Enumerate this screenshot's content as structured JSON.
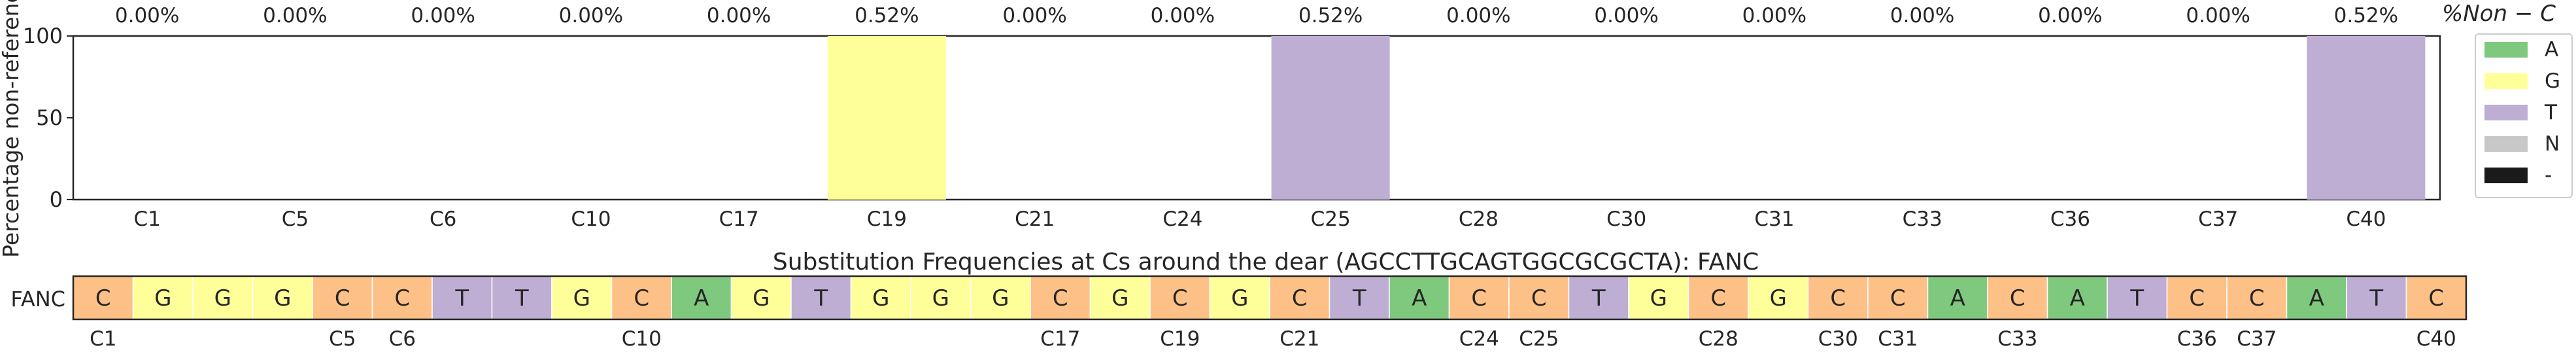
{
  "chart_data": [
    {
      "type": "bar",
      "stacked": true,
      "ylabel": "Percentage non-reference",
      "ylim": [
        0,
        100
      ],
      "yticks": [
        0,
        50,
        100
      ],
      "categories": [
        "C1",
        "C5",
        "C6",
        "C10",
        "C17",
        "C19",
        "C21",
        "C24",
        "C25",
        "C28",
        "C30",
        "C31",
        "C33",
        "C36",
        "C37",
        "C40"
      ],
      "top_labels": [
        "0.00%",
        "0.00%",
        "0.00%",
        "0.00%",
        "0.00%",
        "0.52%",
        "0.00%",
        "0.00%",
        "0.52%",
        "0.00%",
        "0.00%",
        "0.00%",
        "0.00%",
        "0.00%",
        "0.00%",
        "0.52%"
      ],
      "top_axis_label": "%Non − C",
      "series": [
        {
          "name": "A",
          "color": "#7fc97f",
          "values": [
            0,
            0,
            0,
            0,
            0,
            0,
            0,
            0,
            0,
            0,
            0,
            0,
            0,
            0,
            0,
            0
          ]
        },
        {
          "name": "G",
          "color": "#ffff99",
          "values": [
            0,
            0,
            0,
            0,
            0,
            100,
            0,
            0,
            0,
            0,
            0,
            0,
            0,
            0,
            0,
            0
          ]
        },
        {
          "name": "T",
          "color": "#beaed4",
          "values": [
            0,
            0,
            0,
            0,
            0,
            0,
            0,
            0,
            100,
            0,
            0,
            0,
            0,
            0,
            0,
            100
          ]
        },
        {
          "name": "N",
          "color": "#c8c8c8",
          "values": [
            0,
            0,
            0,
            0,
            0,
            0,
            0,
            0,
            0,
            0,
            0,
            0,
            0,
            0,
            0,
            0
          ]
        },
        {
          "name": "-",
          "color": "#1a1a1a",
          "values": [
            0,
            0,
            0,
            0,
            0,
            0,
            0,
            0,
            0,
            0,
            0,
            0,
            0,
            0,
            0,
            0
          ]
        }
      ],
      "legend_placement": "right"
    },
    {
      "type": "table",
      "title": "Substitution Frequencies at Cs around the dear (AGCCTTGCAGTGGCGCGCTA): FANC",
      "row_label": "FANC",
      "sequence": [
        "C",
        "G",
        "G",
        "G",
        "C",
        "C",
        "T",
        "T",
        "G",
        "C",
        "A",
        "G",
        "T",
        "G",
        "G",
        "G",
        "C",
        "G",
        "C",
        "G",
        "C",
        "T",
        "A",
        "C",
        "C",
        "T",
        "G",
        "C",
        "G",
        "C",
        "C",
        "A",
        "C",
        "A",
        "T",
        "C",
        "C",
        "A",
        "T",
        "C"
      ],
      "position_labels": [
        {
          "index": 1,
          "label": "C1"
        },
        {
          "index": 5,
          "label": "C5"
        },
        {
          "index": 6,
          "label": "C6"
        },
        {
          "index": 10,
          "label": "C10"
        },
        {
          "index": 17,
          "label": "C17"
        },
        {
          "index": 19,
          "label": "C19"
        },
        {
          "index": 21,
          "label": "C21"
        },
        {
          "index": 24,
          "label": "C24"
        },
        {
          "index": 25,
          "label": "C25"
        },
        {
          "index": 28,
          "label": "C28"
        },
        {
          "index": 30,
          "label": "C30"
        },
        {
          "index": 31,
          "label": "C31"
        },
        {
          "index": 33,
          "label": "C33"
        },
        {
          "index": 36,
          "label": "C36"
        },
        {
          "index": 37,
          "label": "C37"
        },
        {
          "index": 40,
          "label": "C40"
        }
      ],
      "base_colors": {
        "A": "#7fc97f",
        "G": "#ffff99",
        "T": "#beaed4",
        "C": "#fdc086"
      }
    }
  ]
}
